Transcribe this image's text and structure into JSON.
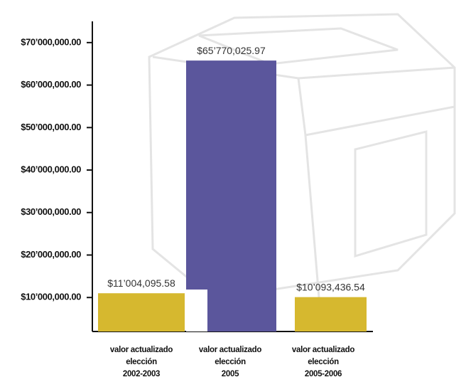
{
  "chart_data": {
    "type": "bar",
    "categories": [
      [
        "valor actualizado",
        "elección",
        "2002-2003"
      ],
      [
        "valor actualizado",
        "elección",
        "2005"
      ],
      [
        "valor actualizado",
        "elección",
        "2005-2006"
      ]
    ],
    "values": [
      11004095.58,
      65770025.97,
      10093436.54
    ],
    "value_labels": [
      "$11’004,095.58",
      "$65’770,025.97",
      "$10’093,436.54"
    ],
    "colors": [
      "#d6b82f",
      "#5b569c",
      "#d6b82f"
    ],
    "ylim": [
      2000000,
      75000000
    ],
    "yticks": [
      {
        "value": 10000000,
        "label": "$10’000,000.00"
      },
      {
        "value": 20000000,
        "label": "$20’000,000.00"
      },
      {
        "value": 30000000,
        "label": "$30’000,000.00"
      },
      {
        "value": 40000000,
        "label": "$40’000,000.00"
      },
      {
        "value": 50000000,
        "label": "$50’000,000.00"
      },
      {
        "value": 60000000,
        "label": "$60’000,000.00"
      },
      {
        "value": 70000000,
        "label": "$70’000,000.00"
      }
    ]
  }
}
